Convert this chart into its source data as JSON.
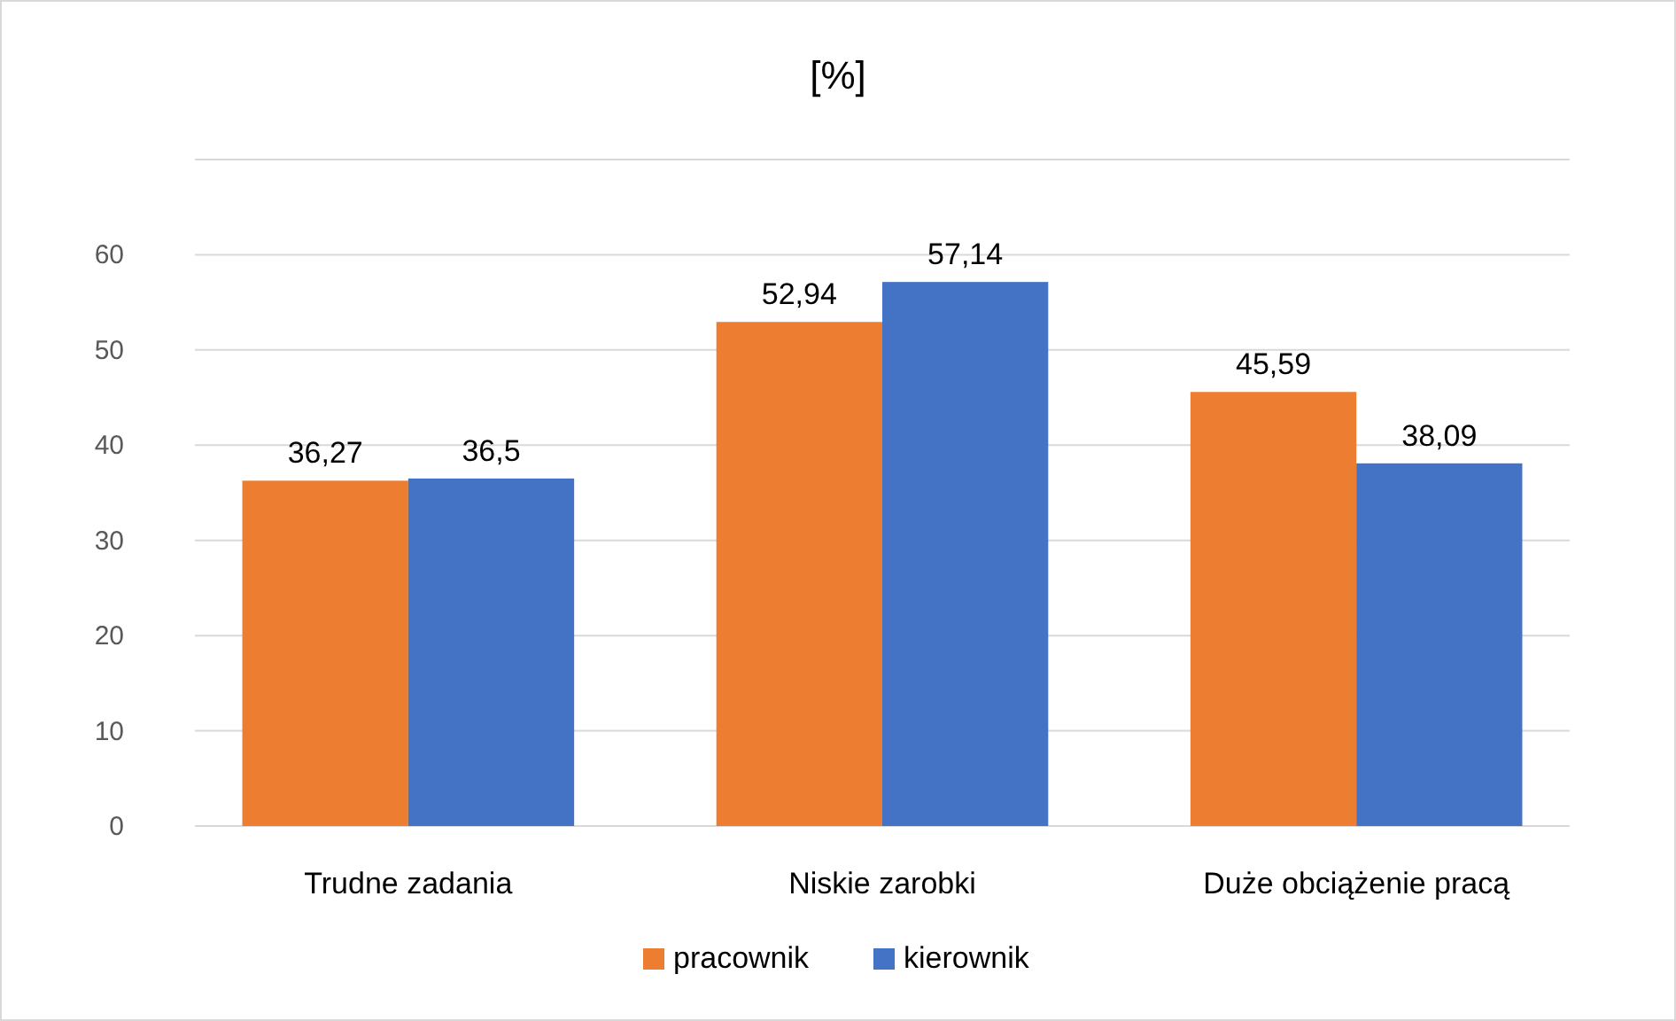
{
  "chart_data": {
    "type": "bar",
    "title": "[%]",
    "categories": [
      "Trudne zadania",
      "Niskie zarobki",
      "Duże obciążenie pracą"
    ],
    "series": [
      {
        "name": "pracownik",
        "color": "#ed7d31",
        "values": [
          36.27,
          52.94,
          45.59
        ],
        "value_labels": [
          "36,27",
          "52,94",
          "45,59"
        ]
      },
      {
        "name": "kierownik",
        "color": "#4472c4",
        "values": [
          36.5,
          57.14,
          38.09
        ],
        "value_labels": [
          "36,5",
          "57,14",
          "38,09"
        ]
      }
    ],
    "ylim": [
      0,
      70
    ],
    "yticks": [
      0,
      10,
      20,
      30,
      40,
      50,
      60,
      {
        "value": 70,
        "label": null
      }
    ],
    "grid": "y",
    "legend": "bottom"
  }
}
